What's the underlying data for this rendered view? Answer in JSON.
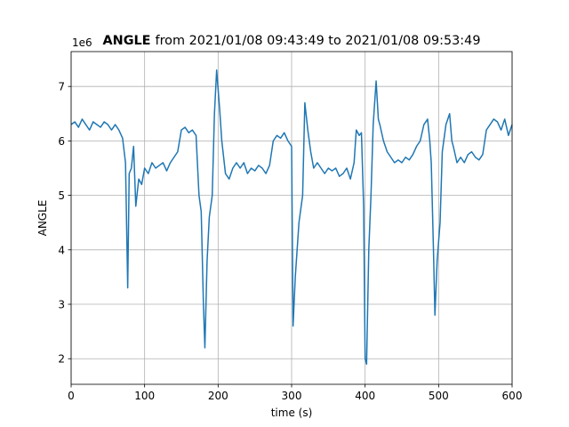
{
  "chart_data": {
    "type": "line",
    "title_bold": "ANGLE",
    "title": "from 2021/01/08 09:43:49 to 2021/01/08 09:53:49",
    "x_label": "time (s)",
    "y_label": "ANGLE",
    "y_offset_text": "1e6",
    "xlim": [
      0,
      600
    ],
    "ylim": [
      1.53,
      7.64
    ],
    "xticks": [
      0,
      100,
      200,
      300,
      400,
      500,
      600
    ],
    "yticks": [
      2,
      3,
      4,
      5,
      6,
      7
    ],
    "grid": true,
    "x": [
      0,
      5,
      10,
      15,
      20,
      25,
      30,
      35,
      40,
      45,
      50,
      55,
      60,
      65,
      70,
      74,
      77,
      79,
      82,
      85,
      88,
      92,
      96,
      100,
      105,
      110,
      115,
      120,
      125,
      130,
      135,
      140,
      145,
      150,
      155,
      160,
      165,
      170,
      174,
      177,
      180,
      182,
      185,
      188,
      192,
      195,
      198,
      202,
      205,
      210,
      215,
      220,
      225,
      230,
      235,
      240,
      245,
      250,
      255,
      260,
      265,
      270,
      275,
      280,
      285,
      290,
      295,
      300,
      302,
      305,
      310,
      315,
      318,
      322,
      326,
      330,
      335,
      340,
      345,
      350,
      355,
      360,
      365,
      370,
      375,
      380,
      385,
      388,
      392,
      395,
      398,
      400,
      402,
      405,
      408,
      411,
      415,
      418,
      420,
      425,
      430,
      435,
      440,
      445,
      450,
      455,
      460,
      465,
      470,
      475,
      480,
      485,
      488,
      490,
      493,
      495,
      498,
      502,
      505,
      510,
      515,
      518,
      520,
      525,
      530,
      535,
      540,
      545,
      550,
      555,
      560,
      565,
      570,
      575,
      580,
      585,
      590,
      595,
      600
    ],
    "series": [
      {
        "name": "ANGLE",
        "color": "#1f77b4",
        "values": [
          6.3,
          6.35,
          6.25,
          6.4,
          6.3,
          6.2,
          6.35,
          6.3,
          6.25,
          6.35,
          6.3,
          6.2,
          6.3,
          6.2,
          6.05,
          5.6,
          3.3,
          5.4,
          5.5,
          5.9,
          4.8,
          5.3,
          5.2,
          5.5,
          5.4,
          5.6,
          5.5,
          5.55,
          5.6,
          5.45,
          5.6,
          5.7,
          5.8,
          6.2,
          6.25,
          6.15,
          6.2,
          6.1,
          5.0,
          4.7,
          3.0,
          2.2,
          3.8,
          4.6,
          5.0,
          6.5,
          7.3,
          6.6,
          6.0,
          5.4,
          5.3,
          5.5,
          5.6,
          5.5,
          5.6,
          5.4,
          5.5,
          5.45,
          5.55,
          5.5,
          5.4,
          5.55,
          6.0,
          6.1,
          6.05,
          6.15,
          6.0,
          5.9,
          2.6,
          3.5,
          4.5,
          5.0,
          6.7,
          6.2,
          5.8,
          5.5,
          5.6,
          5.5,
          5.4,
          5.5,
          5.45,
          5.5,
          5.35,
          5.4,
          5.5,
          5.3,
          5.6,
          6.2,
          6.1,
          6.15,
          4.8,
          2.0,
          1.9,
          4.0,
          5.0,
          6.3,
          7.1,
          6.4,
          6.3,
          6.0,
          5.8,
          5.7,
          5.6,
          5.65,
          5.6,
          5.7,
          5.65,
          5.75,
          5.9,
          6.0,
          6.3,
          6.4,
          6.0,
          5.6,
          4.0,
          2.8,
          3.8,
          4.5,
          5.8,
          6.3,
          6.5,
          6.0,
          5.9,
          5.6,
          5.7,
          5.6,
          5.75,
          5.8,
          5.7,
          5.65,
          5.75,
          6.2,
          6.3,
          6.4,
          6.35,
          6.2,
          6.4,
          6.1,
          6.3
        ]
      }
    ]
  }
}
